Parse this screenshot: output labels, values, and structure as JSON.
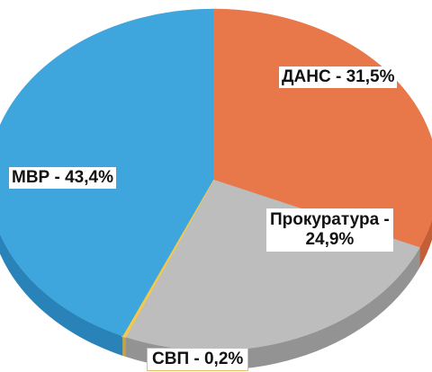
{
  "chart_data": {
    "type": "pie",
    "title": "",
    "slices": [
      {
        "name": "ДАНС",
        "value": 31.5,
        "label": "ДАНС - 31,5%",
        "color": "#e8774a",
        "side": "#c35e36"
      },
      {
        "name": "Прокуратура",
        "value": 24.9,
        "label_line1": "Прокуратура -",
        "label_line2": "24,9%",
        "color": "#bdbdbd",
        "side": "#939393"
      },
      {
        "name": "СВП",
        "value": 0.2,
        "label": "СВП - 0,2%",
        "color": "#f2c94c",
        "side": "#c9a238"
      },
      {
        "name": "МВР",
        "value": 43.4,
        "label": "МВР - 43,4%",
        "color": "#3fa6dd",
        "side": "#2a83b8"
      }
    ],
    "start_angle_deg": -90,
    "view": "3d-tilted"
  }
}
